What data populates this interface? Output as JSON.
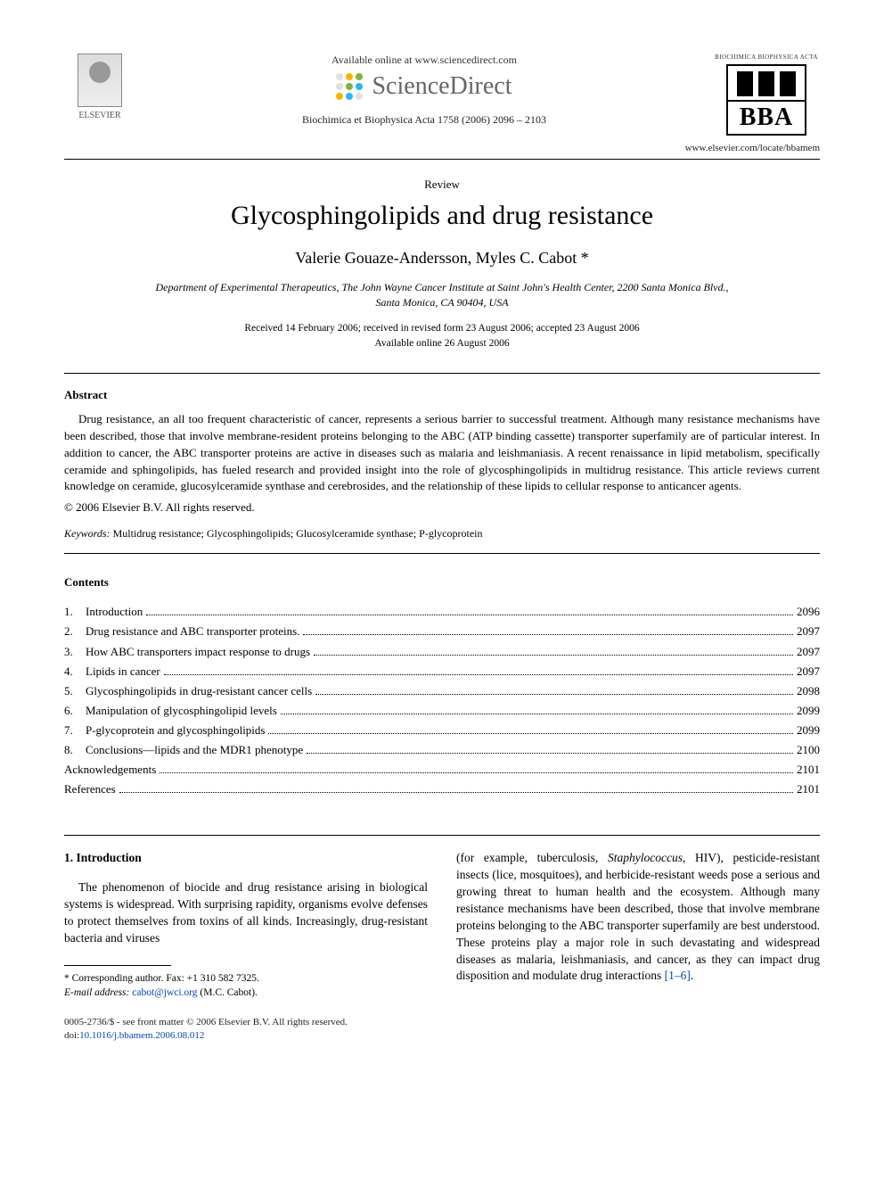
{
  "header": {
    "available_text": "Available online at www.sciencedirect.com",
    "sd_brand": "ScienceDirect",
    "sd_dot_colors": [
      "#e0e0e0",
      "#f7b500",
      "#7cb342",
      "#e0e0e0",
      "#7cb342",
      "#29b6f6",
      "#f7b500",
      "#29b6f6",
      "#e0e0e0"
    ],
    "citation": "Biochimica et Biophysica Acta 1758 (2006) 2096 – 2103",
    "publisher": "ELSEVIER",
    "journal_logo_top": "BIOCHIMICA   BIOPHYSICA ACTA",
    "journal_logo_acronym": "BBA",
    "journal_url": "www.elsevier.com/locate/bbamem"
  },
  "article": {
    "type_label": "Review",
    "title": "Glycosphingolipids and drug resistance",
    "authors": "Valerie Gouaze-Andersson, Myles C. Cabot *",
    "affiliation_line1": "Department of Experimental Therapeutics, The John Wayne Cancer Institute at Saint John's Health Center, 2200 Santa Monica Blvd.,",
    "affiliation_line2": "Santa Monica, CA 90404, USA",
    "dates_line1": "Received 14 February 2006; received in revised form 23 August 2006; accepted 23 August 2006",
    "dates_line2": "Available online 26 August 2006"
  },
  "abstract": {
    "label": "Abstract",
    "body": "Drug resistance, an all too frequent characteristic of cancer, represents a serious barrier to successful treatment. Although many resistance mechanisms have been described, those that involve membrane-resident proteins belonging to the ABC (ATP binding cassette) transporter superfamily are of particular interest. In addition to cancer, the ABC transporter proteins are active in diseases such as malaria and leishmaniasis. A recent renaissance in lipid metabolism, specifically ceramide and sphingolipids, has fueled research and provided insight into the role of glycosphingolipids in multidrug resistance. This article reviews current knowledge on ceramide, glucosylceramide synthase and cerebrosides, and the relationship of these lipids to cellular response to anticancer agents.",
    "copyright": "© 2006 Elsevier B.V. All rights reserved.",
    "keywords_label": "Keywords:",
    "keywords": " Multidrug resistance; Glycosphingolipids; Glucosylceramide synthase; P-glycoprotein"
  },
  "contents": {
    "label": "Contents",
    "items": [
      {
        "num": "1.",
        "title": "Introduction",
        "page": "2096"
      },
      {
        "num": "2.",
        "title": "Drug resistance and ABC transporter proteins.",
        "page": "2097"
      },
      {
        "num": "3.",
        "title": "How ABC transporters impact response to drugs",
        "page": "2097"
      },
      {
        "num": "4.",
        "title": "Lipids in cancer",
        "page": "2097"
      },
      {
        "num": "5.",
        "title": "Glycosphingolipids in drug-resistant cancer cells",
        "page": "2098"
      },
      {
        "num": "6.",
        "title": "Manipulation of glycosphingolipid levels",
        "page": "2099"
      },
      {
        "num": "7.",
        "title": "P-glycoprotein and glycosphingolipids",
        "page": "2099"
      },
      {
        "num": "8.",
        "title": "Conclusions—lipids and the MDR1 phenotype",
        "page": "2100"
      },
      {
        "num": "",
        "title": "Acknowledgements",
        "page": "2101"
      },
      {
        "num": "",
        "title": "References",
        "page": "2101"
      }
    ]
  },
  "body": {
    "intro_heading": "1. Introduction",
    "col1_para": "The phenomenon of biocide and drug resistance arising in biological systems is widespread. With surprising rapidity, organisms evolve defenses to protect themselves from toxins of all kinds. Increasingly, drug-resistant bacteria and viruses",
    "col2_para_pre": "(for example, tuberculosis, ",
    "col2_para_ital": "Staphylococcus",
    "col2_para_post": ", HIV), pesticide-resistant insects (lice, mosquitoes), and herbicide-resistant weeds pose a serious and growing threat to human health and the ecosystem. Although many resistance mechanisms have been described, those that involve membrane proteins belonging to the ABC transporter superfamily are best understood. These proteins play a major role in such devastating and widespread diseases as malaria, leishmaniasis, and cancer, as they can impact drug disposition and modulate drug interactions ",
    "col2_ref": "[1–6]",
    "col2_period": "."
  },
  "footnote": {
    "corr": "* Corresponding author. Fax: +1 310 582 7325.",
    "email_label": "E-mail address:",
    "email": "cabot@jwci.org",
    "email_tail": " (M.C. Cabot)."
  },
  "footer": {
    "line1": "0005-2736/$ - see front matter © 2006 Elsevier B.V. All rights reserved.",
    "doi_label": "doi:",
    "doi": "10.1016/j.bbamem.2006.08.012"
  }
}
